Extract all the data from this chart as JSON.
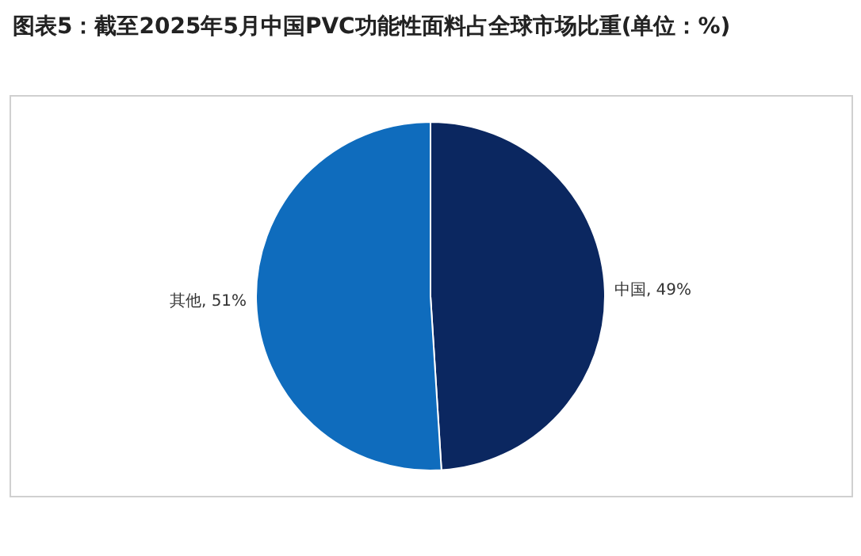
{
  "chart_data": {
    "type": "pie",
    "title": "图表5：截至2025年5月中国PVC功能性面料占全球市场比重(单位：%)",
    "categories": [
      "中国",
      "其他"
    ],
    "values": [
      49,
      51
    ],
    "colors": [
      "#0b2760",
      "#0f6cbd"
    ],
    "value_labels": [
      "49%",
      "51%"
    ],
    "legend": false
  }
}
